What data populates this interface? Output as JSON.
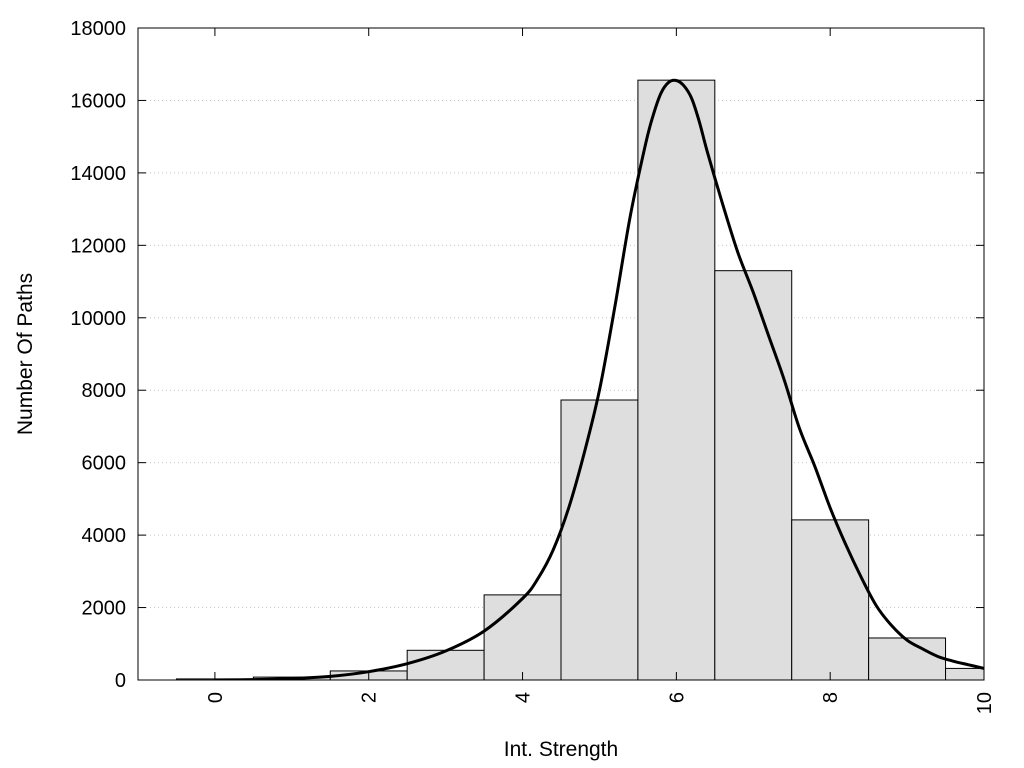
{
  "chart_data": {
    "type": "bar",
    "title": "",
    "xlabel": "Int. Strength",
    "ylabel": "Number Of Paths",
    "xlim": [
      -1,
      10
    ],
    "ylim": [
      0,
      18000
    ],
    "xticks": [
      "0",
      "2",
      "4",
      "6",
      "8",
      "10"
    ],
    "yticks": [
      "0",
      "2000",
      "4000",
      "6000",
      "8000",
      "10000",
      "12000",
      "14000",
      "16000",
      "18000"
    ],
    "grid": "horizontal-dotted",
    "legend": "none",
    "bins": [
      {
        "left": -0.5,
        "right": 0.5,
        "value": 30
      },
      {
        "left": 0.5,
        "right": 1.5,
        "value": 80
      },
      {
        "left": 1.5,
        "right": 2.5,
        "value": 250
      },
      {
        "left": 2.5,
        "right": 3.5,
        "value": 820
      },
      {
        "left": 3.5,
        "right": 4.5,
        "value": 2350
      },
      {
        "left": 4.5,
        "right": 5.5,
        "value": 7730
      },
      {
        "left": 5.5,
        "right": 6.5,
        "value": 16560
      },
      {
        "left": 6.5,
        "right": 7.5,
        "value": 11300
      },
      {
        "left": 7.5,
        "right": 8.5,
        "value": 4420
      },
      {
        "left": 8.5,
        "right": 9.5,
        "value": 1160
      },
      {
        "left": 9.5,
        "right": 10.5,
        "value": 320
      }
    ],
    "curve": {
      "x": [
        0,
        0.5,
        1,
        1.5,
        2,
        2.5,
        3,
        3.5,
        4,
        4.2,
        4.4,
        4.6,
        4.8,
        5,
        5.2,
        5.4,
        5.6,
        5.7,
        5.8,
        5.9,
        6,
        6.1,
        6.2,
        6.3,
        6.4,
        6.6,
        6.8,
        7,
        7.2,
        7.4,
        7.6,
        7.8,
        8,
        8.2,
        8.4,
        8.6,
        8.8,
        9,
        9.2,
        9.4,
        9.6,
        9.8,
        10
      ],
      "y": [
        0,
        10,
        40,
        100,
        230,
        450,
        800,
        1350,
        2250,
        2800,
        3600,
        4750,
        6250,
        8000,
        10300,
        12800,
        14800,
        15600,
        16200,
        16500,
        16550,
        16400,
        16050,
        15400,
        14600,
        13150,
        11800,
        10700,
        9500,
        8300,
        6950,
        5900,
        4750,
        3750,
        2850,
        2050,
        1500,
        1100,
        860,
        650,
        520,
        420,
        320
      ],
      "color": "#000000"
    },
    "colors": {
      "bar_fill": "#dedede",
      "bar_stroke": "#000000",
      "grid": "#c8c8c8"
    }
  }
}
